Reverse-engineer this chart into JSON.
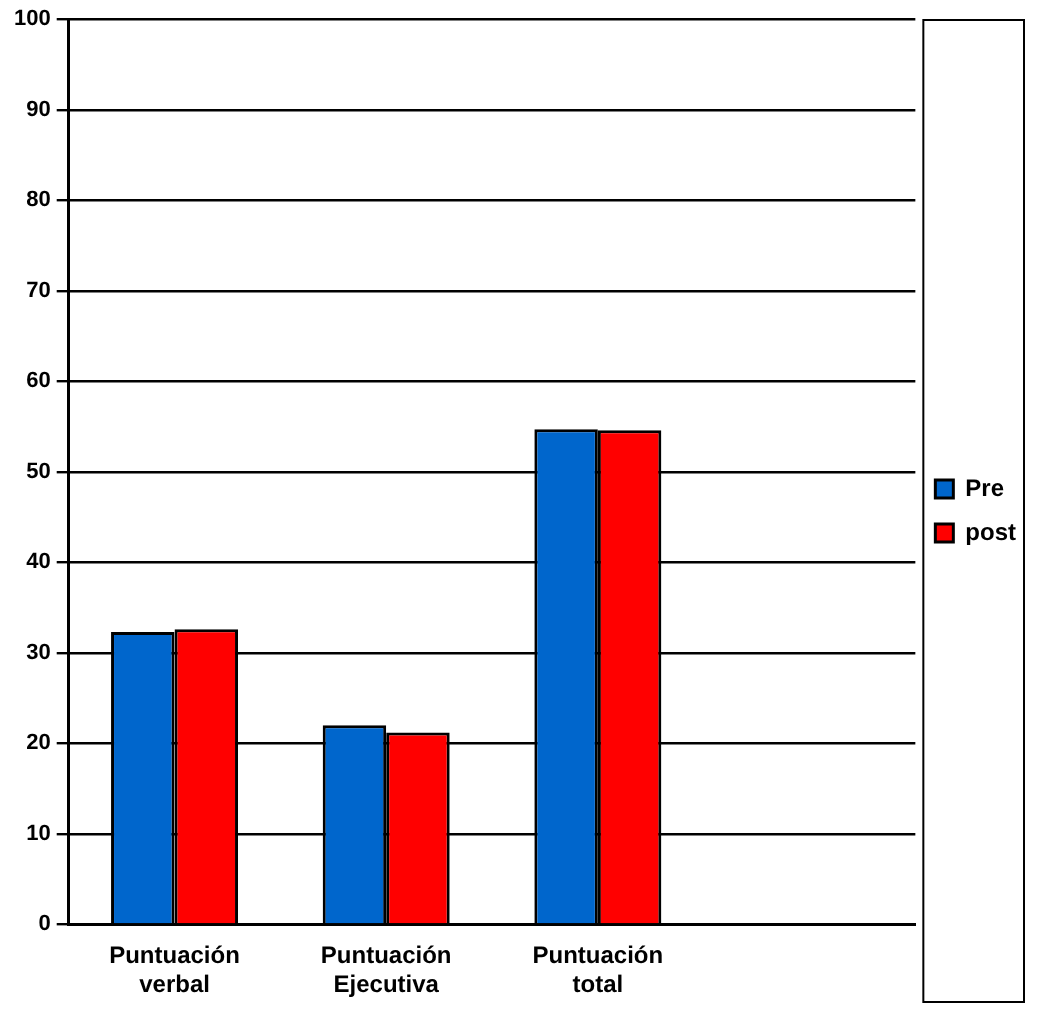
{
  "chart_data": {
    "type": "bar",
    "categories": [
      "Puntuación verbal",
      "Puntuación Ejecutiva",
      "Puntuación total",
      null
    ],
    "series": [
      {
        "name": "Pre",
        "color": "#0066cc",
        "values": [
          32.3,
          22,
          54.7,
          null
        ]
      },
      {
        "name": "post",
        "color": "#ff0000",
        "values": [
          32.6,
          21.2,
          54.6,
          null
        ]
      }
    ],
    "ylim": [
      0,
      100
    ],
    "yticks": [
      0,
      10,
      20,
      30,
      40,
      50,
      60,
      70,
      80,
      90,
      100
    ],
    "grid": "y",
    "legend": "right"
  }
}
